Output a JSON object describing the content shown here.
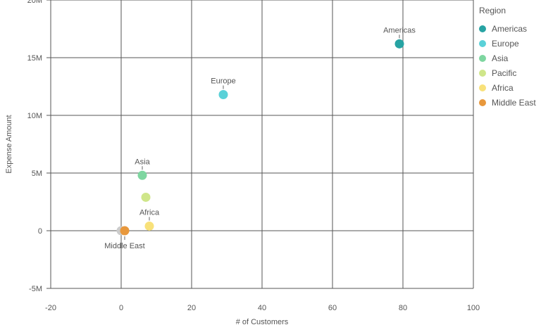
{
  "chart_data": {
    "type": "scatter",
    "title": "",
    "xlabel": "# of Customers",
    "ylabel": "Expense Amount",
    "xlim": [
      -20,
      100
    ],
    "ylim": [
      -5000000,
      20000000
    ],
    "x_ticks": [
      -20,
      0,
      20,
      40,
      60,
      80,
      100
    ],
    "x_tick_labels": [
      "-20",
      "0",
      "20",
      "40",
      "60",
      "80",
      "100"
    ],
    "y_ticks": [
      -5000000,
      0,
      5000000,
      10000000,
      15000000,
      20000000
    ],
    "y_tick_labels": [
      "-5M",
      "0",
      "5M",
      "10M",
      "15M",
      "20M"
    ],
    "grid": true,
    "legend": {
      "title": "Region",
      "placement": "right"
    },
    "series": [
      {
        "name": "Americas",
        "color": "#27a3a3",
        "x": 79,
        "y": 16200000,
        "label": "Americas"
      },
      {
        "name": "Europe",
        "color": "#5ad1d8",
        "x": 29,
        "y": 11800000,
        "label": "Europe"
      },
      {
        "name": "Asia",
        "color": "#7ed6a0",
        "x": 6,
        "y": 4800000,
        "label": "Asia"
      },
      {
        "name": "Pacific",
        "color": "#cfe68a",
        "x": 7,
        "y": 2900000,
        "label": ""
      },
      {
        "name": "Africa",
        "color": "#f8e17a",
        "x": 8,
        "y": 400000,
        "label": "Africa"
      },
      {
        "name": "Middle East",
        "color": "#e8983c",
        "x": 1,
        "y": 0,
        "label": "Middle East"
      }
    ],
    "extra_points": [
      {
        "color": "#cccccc",
        "x": 0,
        "y": 0
      }
    ]
  }
}
